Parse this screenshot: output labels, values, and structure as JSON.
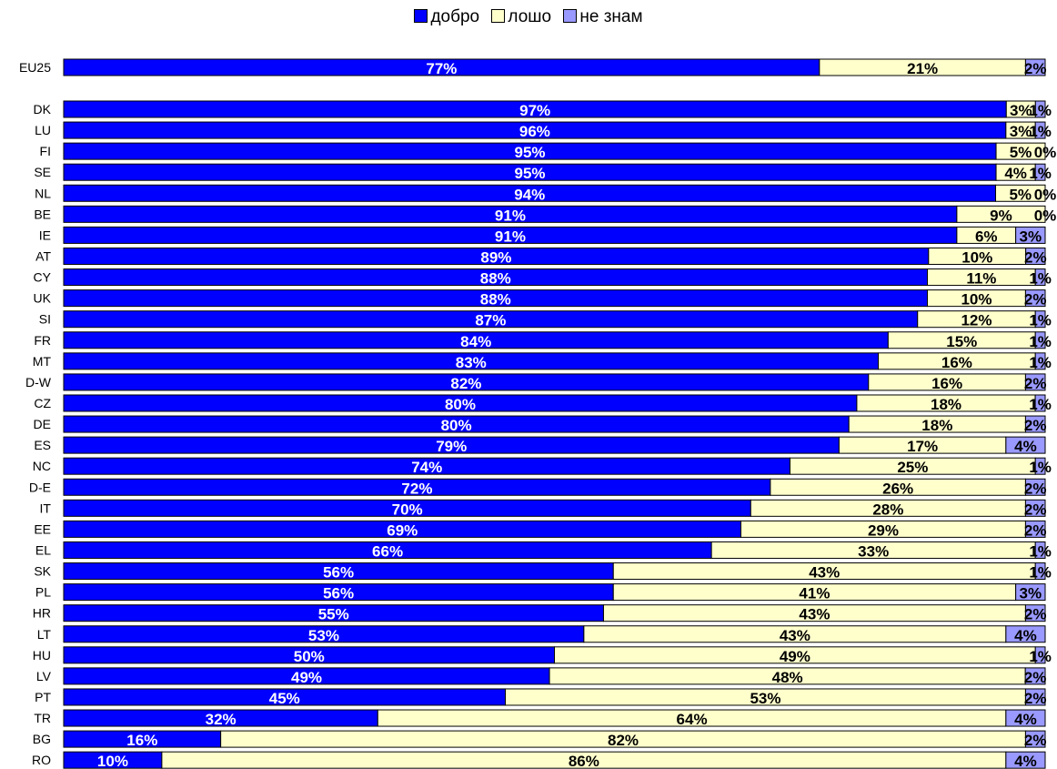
{
  "chart_data": {
    "type": "bar",
    "orientation": "horizontal",
    "stacked": "100%",
    "grid": false,
    "legend_position": "top-center",
    "colors": {
      "good": "#0000FF",
      "bad": "#FFFFCC",
      "dont_know": "#9999FF"
    },
    "series": [
      {
        "name": "добро",
        "key": "good"
      },
      {
        "name": "лошо",
        "key": "bad"
      },
      {
        "name": "не знам",
        "key": "dont_know"
      }
    ],
    "categories": [
      "EU25",
      "DK",
      "LU",
      "FI",
      "SE",
      "NL",
      "BE",
      "IE",
      "AT",
      "CY",
      "UK",
      "SI",
      "FR",
      "MT",
      "D-W",
      "CZ",
      "DE",
      "ES",
      "NC",
      "D-E",
      "IT",
      "EE",
      "EL",
      "SK",
      "PL",
      "HR",
      "LT",
      "HU",
      "LV",
      "PT",
      "TR",
      "BG",
      "RO"
    ],
    "good": [
      77,
      97,
      96,
      95,
      95,
      94,
      91,
      91,
      89,
      88,
      88,
      87,
      84,
      83,
      82,
      80,
      80,
      79,
      74,
      72,
      70,
      69,
      66,
      56,
      56,
      55,
      53,
      50,
      49,
      45,
      32,
      16,
      10
    ],
    "bad": [
      21,
      3,
      3,
      5,
      4,
      5,
      9,
      6,
      10,
      11,
      10,
      12,
      15,
      16,
      16,
      18,
      18,
      17,
      25,
      26,
      28,
      29,
      33,
      43,
      41,
      43,
      43,
      49,
      48,
      53,
      64,
      82,
      86
    ],
    "dont_know": [
      2,
      1,
      1,
      0,
      1,
      0,
      0,
      3,
      2,
      1,
      2,
      1,
      1,
      1,
      2,
      1,
      2,
      4,
      1,
      2,
      2,
      2,
      1,
      1,
      3,
      2,
      4,
      1,
      2,
      2,
      4,
      2,
      4
    ]
  }
}
